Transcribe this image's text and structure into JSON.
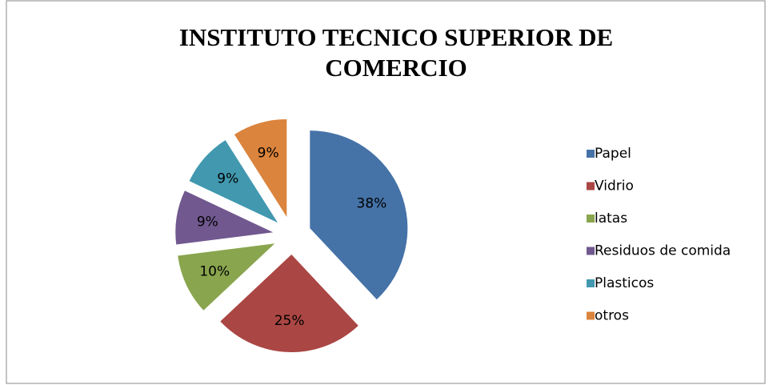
{
  "chart_data": {
    "type": "pie",
    "title": "INSTITUTO TECNICO SUPERIOR DE COMERCIO",
    "categories": [
      "Papel",
      "Vidrio",
      "latas",
      "Residuos de comida",
      "Plasticos",
      "otros"
    ],
    "values": [
      38,
      25,
      10,
      9,
      9,
      9
    ],
    "value_labels": [
      "38%",
      "25%",
      "10%",
      "9%",
      "9%",
      "9%"
    ],
    "colors": [
      "#4572a7",
      "#aa4643",
      "#89a54e",
      "#71588f",
      "#4198af",
      "#db843d"
    ],
    "exploded": true,
    "legend": "right"
  }
}
